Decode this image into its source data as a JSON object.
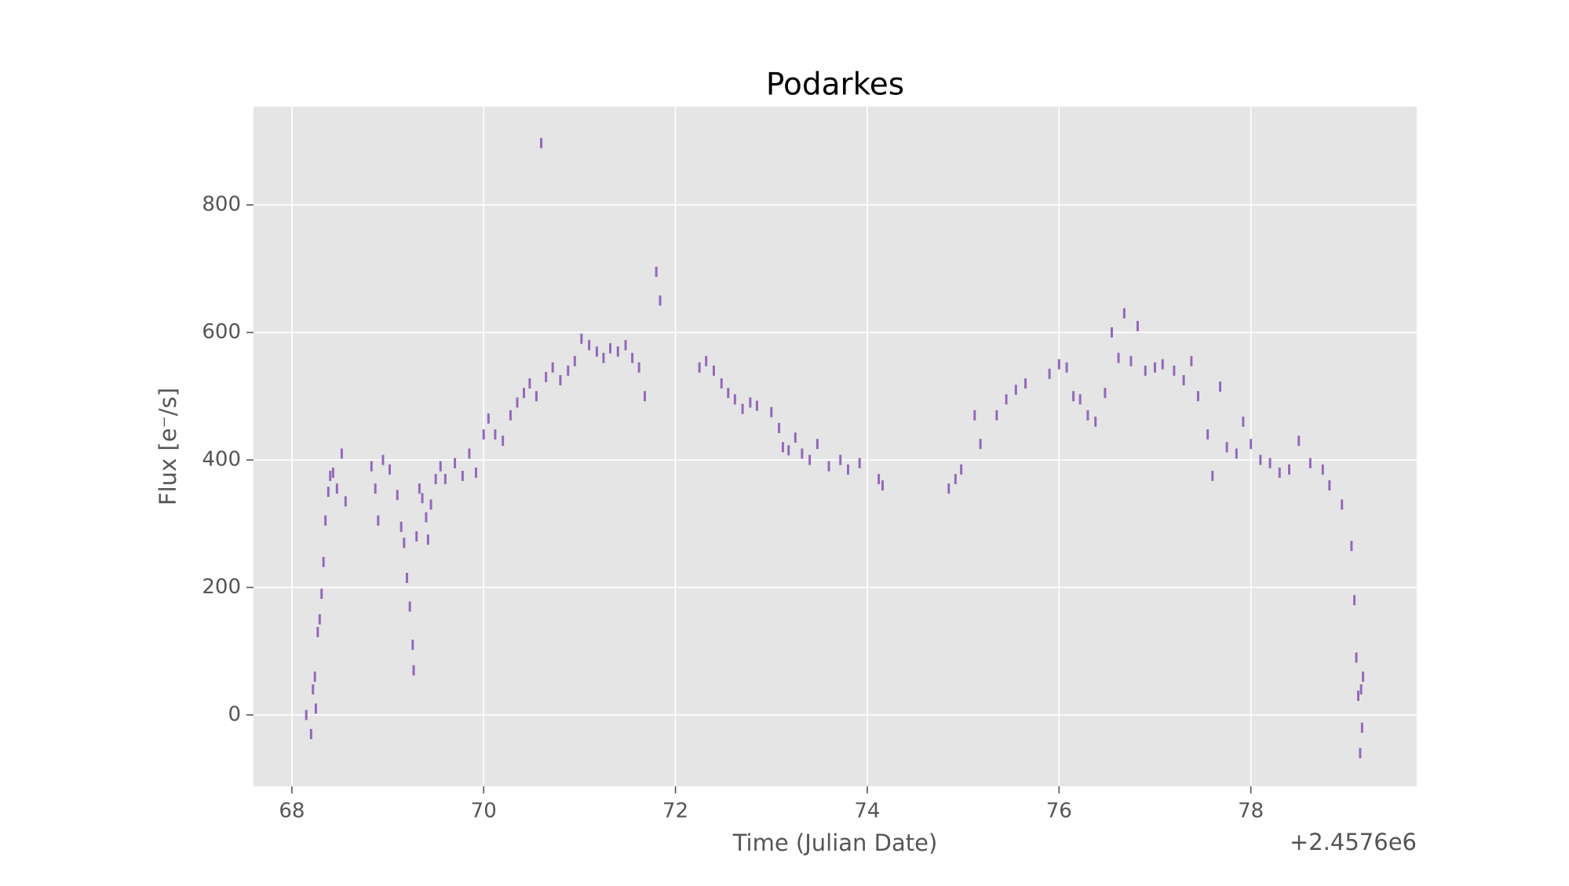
{
  "chart_data": {
    "type": "errorbar",
    "title": "Podarkes",
    "xlabel": "Time (Julian Date)",
    "ylabel": "Flux [e⁻/s]",
    "x_offset_label": "+2.4576e6",
    "color": "#9467bd",
    "grid": true,
    "error": 8,
    "x": [
      68.15,
      68.2,
      68.22,
      68.24,
      68.25,
      68.27,
      68.29,
      68.31,
      68.33,
      68.35,
      68.38,
      68.4,
      68.43,
      68.47,
      68.52,
      68.56,
      68.83,
      68.87,
      68.9,
      68.95,
      69.02,
      69.1,
      69.14,
      69.17,
      69.2,
      69.23,
      69.26,
      69.27,
      69.3,
      69.33,
      69.36,
      69.4,
      69.42,
      69.45,
      69.5,
      69.55,
      69.6,
      69.7,
      69.78,
      69.85,
      69.92,
      70.0,
      70.05,
      70.12,
      70.2,
      70.28,
      70.35,
      70.42,
      70.48,
      70.55,
      70.6,
      70.65,
      70.72,
      70.8,
      70.88,
      70.95,
      71.02,
      71.1,
      71.18,
      71.25,
      71.32,
      71.4,
      71.48,
      71.55,
      71.62,
      71.68,
      71.8,
      71.84,
      72.25,
      72.32,
      72.4,
      72.48,
      72.55,
      72.62,
      72.7,
      72.78,
      72.85,
      73.0,
      73.08,
      73.12,
      73.18,
      73.25,
      73.32,
      73.4,
      73.48,
      73.6,
      73.72,
      73.8,
      73.92,
      74.12,
      74.16,
      74.85,
      74.92,
      74.98,
      75.12,
      75.18,
      75.35,
      75.45,
      75.55,
      75.65,
      75.9,
      76.0,
      76.08,
      76.15,
      76.22,
      76.3,
      76.38,
      76.48,
      76.55,
      76.62,
      76.68,
      76.75,
      76.82,
      76.9,
      77.0,
      77.08,
      77.2,
      77.3,
      77.38,
      77.45,
      77.55,
      77.6,
      77.68,
      77.75,
      77.85,
      77.92,
      78.0,
      78.1,
      78.2,
      78.3,
      78.4,
      78.5,
      78.62,
      78.75,
      78.82,
      78.95,
      79.05,
      79.08,
      79.1,
      79.12,
      79.14,
      79.15,
      79.16,
      79.17
    ],
    "y": [
      0,
      -30,
      40,
      60,
      10,
      130,
      150,
      190,
      240,
      305,
      350,
      375,
      380,
      355,
      410,
      335,
      390,
      355,
      305,
      400,
      385,
      345,
      295,
      270,
      215,
      170,
      110,
      70,
      280,
      355,
      340,
      310,
      275,
      330,
      370,
      390,
      370,
      395,
      375,
      410,
      380,
      440,
      465,
      440,
      430,
      470,
      490,
      505,
      520,
      500,
      897,
      530,
      545,
      525,
      540,
      555,
      590,
      580,
      570,
      560,
      575,
      570,
      580,
      560,
      545,
      500,
      695,
      650,
      545,
      555,
      540,
      520,
      505,
      495,
      480,
      490,
      485,
      475,
      450,
      420,
      415,
      435,
      410,
      400,
      425,
      390,
      400,
      385,
      395,
      370,
      360,
      355,
      370,
      385,
      470,
      425,
      470,
      495,
      510,
      520,
      535,
      550,
      545,
      500,
      495,
      470,
      460,
      505,
      600,
      560,
      630,
      555,
      610,
      540,
      545,
      550,
      540,
      525,
      555,
      500,
      440,
      375,
      515,
      420,
      410,
      460,
      425,
      400,
      395,
      380,
      385,
      430,
      395,
      385,
      360,
      330,
      265,
      180,
      90,
      30,
      -60,
      40,
      -20,
      60
    ],
    "xlim": [
      67.6,
      79.73
    ],
    "ylim": [
      -112,
      954
    ],
    "xticks": [
      68,
      70,
      72,
      74,
      76,
      78
    ],
    "yticks": [
      0,
      200,
      400,
      600,
      800
    ]
  }
}
